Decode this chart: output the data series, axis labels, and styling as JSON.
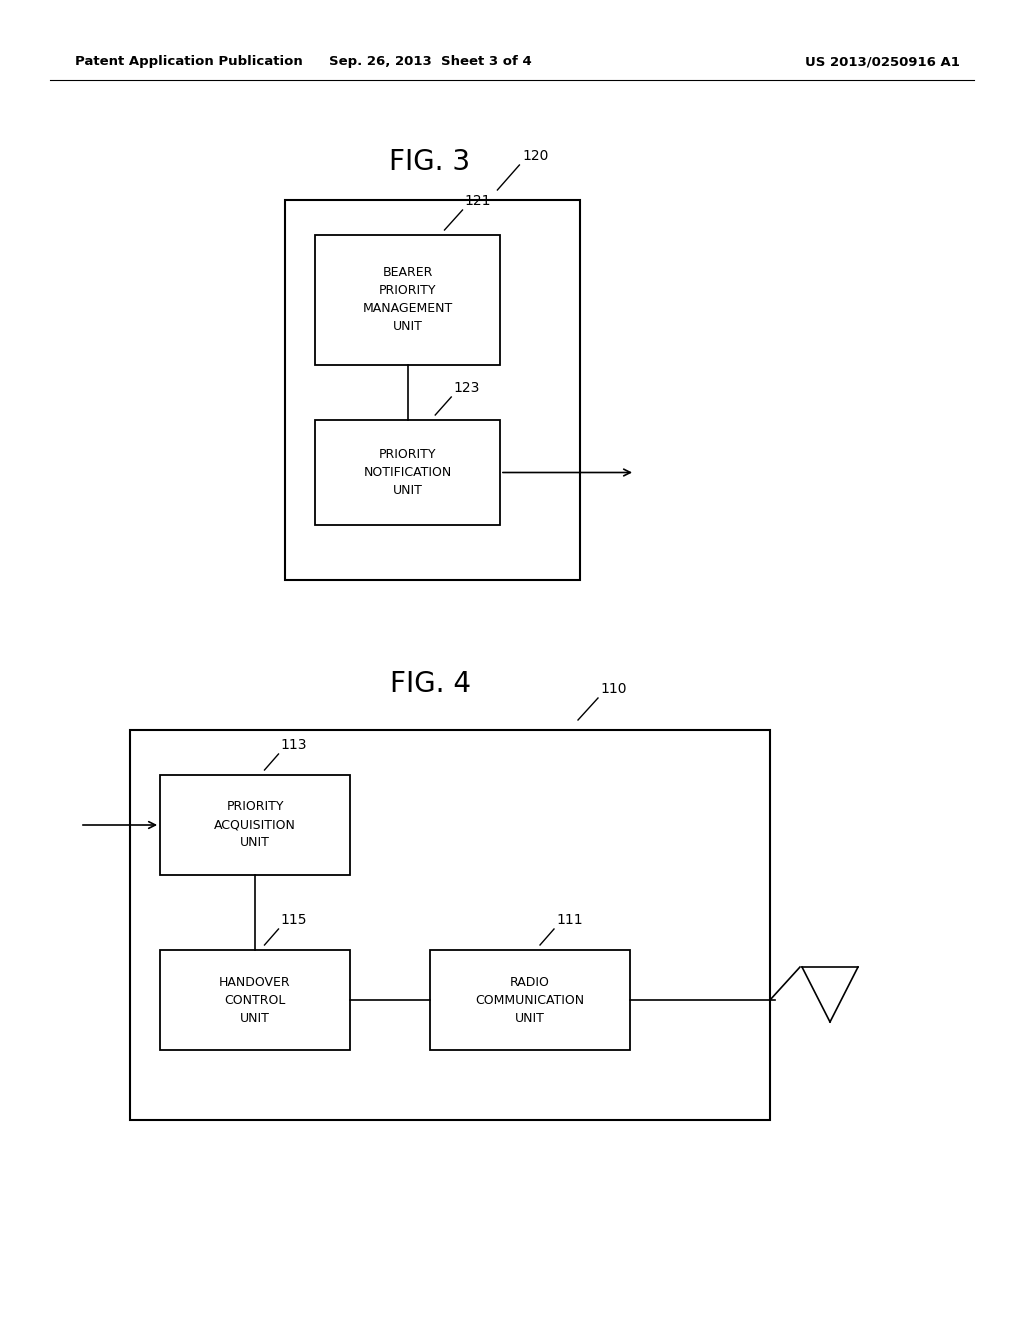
{
  "background_color": "#ffffff",
  "header_left": "Patent Application Publication",
  "header_center": "Sep. 26, 2013  Sheet 3 of 4",
  "header_right": "US 2013/0250916 A1",
  "fig3_title": "FIG. 3",
  "fig4_title": "FIG. 4",
  "fig3": {
    "label_120": "120",
    "label_121": "121",
    "label_123": "123",
    "text_bearer": "BEARER\nPRIORITY\nMANAGEMENT\nUNIT",
    "text_priority_notif": "PRIORITY\nNOTIFICATION\nUNIT"
  },
  "fig4": {
    "label_110": "110",
    "label_113": "113",
    "label_115": "115",
    "label_111": "111",
    "text_priority_acq": "PRIORITY\nACQUISITION\nUNIT",
    "text_handover": "HANDOVER\nCONTROL\nUNIT",
    "text_radio": "RADIO\nCOMMUNICATION\nUNIT"
  }
}
